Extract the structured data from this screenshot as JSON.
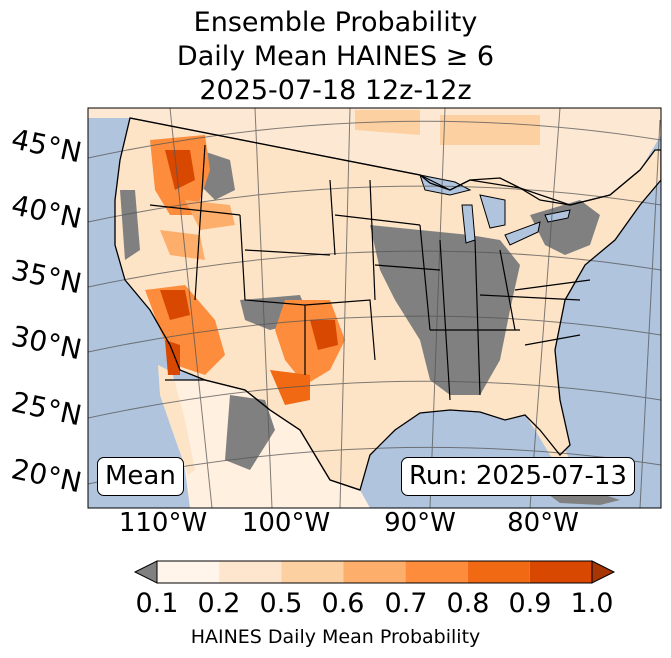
{
  "title": {
    "line1": "Ensemble Probability",
    "line2": "Daily Mean HAINES ≥ 6",
    "line3": "2025-07-18 12z-12z"
  },
  "map": {
    "ocean_color": "#b0c4de",
    "land_color": "#ffffff",
    "missing_color": "#808080",
    "lat_labels": [
      "45°N",
      "40°N",
      "35°N",
      "30°N",
      "25°N",
      "20°N"
    ],
    "lon_labels": [
      "110°W",
      "100°W",
      "90°W",
      "80°W"
    ],
    "stat_label": "Mean",
    "run_label": "Run: 2025-07-13"
  },
  "colorbar": {
    "ticks": [
      "0.1",
      "0.2",
      "0.5",
      "0.6",
      "0.7",
      "0.8",
      "0.9",
      "1.0"
    ],
    "colors": [
      "#fff5eb",
      "#fee6ce",
      "#fdd0a2",
      "#fdae6b",
      "#fd8d3c",
      "#f16913",
      "#d94801",
      "#a63603"
    ],
    "under_color": "#808080",
    "label": "HAINES Daily Mean Probability"
  }
}
